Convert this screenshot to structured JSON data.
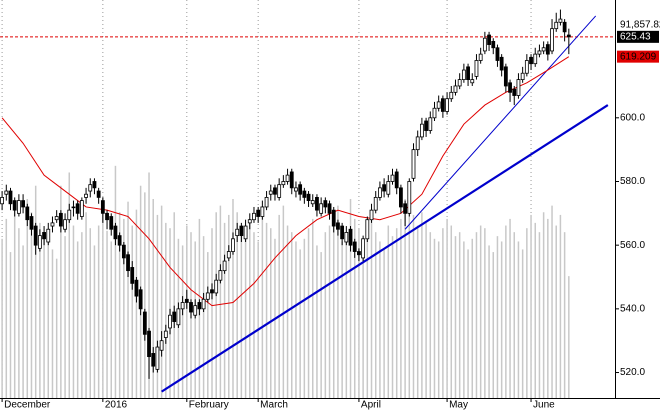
{
  "chart_data": {
    "type": "candlestick",
    "ohlc": [
      [
        573,
        577,
        571,
        575
      ],
      [
        576,
        579,
        574,
        577
      ],
      [
        577,
        578,
        571,
        573
      ],
      [
        574,
        575,
        569,
        571
      ],
      [
        570,
        576,
        569,
        574
      ],
      [
        574,
        576,
        570,
        572
      ],
      [
        572,
        573,
        566,
        568
      ],
      [
        569,
        570,
        563,
        565
      ],
      [
        566,
        567,
        557,
        560
      ],
      [
        559,
        565,
        558,
        563
      ],
      [
        564,
        566,
        560,
        562
      ],
      [
        561,
        567,
        560,
        565
      ],
      [
        566,
        569,
        564,
        567
      ],
      [
        568,
        571,
        567,
        569
      ],
      [
        570,
        571,
        564,
        566
      ],
      [
        565,
        570,
        564,
        568
      ],
      [
        568,
        573,
        567,
        571
      ],
      [
        572,
        574,
        569,
        572
      ],
      [
        573,
        574,
        568,
        570
      ],
      [
        569,
        575,
        568,
        574
      ],
      [
        575,
        578,
        573,
        576
      ],
      [
        577,
        581,
        575,
        579
      ],
      [
        580,
        581,
        576,
        578
      ],
      [
        577,
        578,
        573,
        575
      ],
      [
        574,
        575,
        567,
        570
      ],
      [
        570,
        571,
        565,
        568
      ],
      [
        569,
        570,
        563,
        565
      ],
      [
        566,
        567,
        560,
        562
      ],
      [
        563,
        564,
        558,
        560
      ],
      [
        560,
        561,
        554,
        556
      ],
      [
        557,
        558,
        550,
        552
      ],
      [
        553,
        555,
        546,
        548
      ],
      [
        549,
        550,
        542,
        544
      ],
      [
        546,
        547,
        538,
        540
      ],
      [
        539,
        540,
        530,
        532
      ],
      [
        533,
        534,
        518,
        525
      ],
      [
        526,
        528,
        520,
        522
      ],
      [
        521,
        530,
        520,
        528
      ],
      [
        527,
        533,
        525,
        530
      ],
      [
        531,
        535,
        529,
        533
      ],
      [
        534,
        540,
        532,
        538
      ],
      [
        539,
        541,
        534,
        536
      ],
      [
        535,
        542,
        534,
        540
      ],
      [
        540,
        544,
        538,
        542
      ],
      [
        543,
        546,
        540,
        542
      ],
      [
        542,
        543,
        537,
        539
      ],
      [
        538,
        543,
        537,
        541
      ],
      [
        542,
        543,
        538,
        540
      ],
      [
        540,
        545,
        539,
        543
      ],
      [
        543,
        547,
        542,
        545
      ],
      [
        546,
        548,
        543,
        545
      ],
      [
        545,
        551,
        544,
        549
      ],
      [
        549,
        554,
        548,
        552
      ],
      [
        552,
        557,
        551,
        555
      ],
      [
        556,
        560,
        555,
        558
      ],
      [
        558,
        564,
        557,
        562
      ],
      [
        563,
        567,
        561,
        565
      ],
      [
        566,
        567,
        561,
        563
      ],
      [
        562,
        568,
        561,
        566
      ],
      [
        567,
        570,
        565,
        568
      ],
      [
        568,
        572,
        567,
        570
      ],
      [
        571,
        572,
        567,
        569
      ],
      [
        569,
        574,
        568,
        572
      ],
      [
        572,
        577,
        571,
        575
      ],
      [
        576,
        579,
        574,
        577
      ],
      [
        578,
        579,
        574,
        576
      ],
      [
        575,
        581,
        574,
        579
      ],
      [
        579,
        582,
        578,
        580
      ],
      [
        580,
        584,
        579,
        582
      ],
      [
        583,
        584,
        576,
        578
      ],
      [
        577,
        580,
        575,
        578
      ],
      [
        579,
        580,
        574,
        576
      ],
      [
        577,
        578,
        573,
        575
      ],
      [
        576,
        577,
        572,
        574
      ],
      [
        573,
        576,
        572,
        574
      ],
      [
        575,
        576,
        569,
        571
      ],
      [
        570,
        575,
        569,
        573
      ],
      [
        574,
        575,
        570,
        572
      ],
      [
        573,
        574,
        568,
        570
      ],
      [
        571,
        572,
        564,
        566
      ],
      [
        567,
        568,
        563,
        565
      ],
      [
        566,
        567,
        560,
        562
      ],
      [
        561,
        566,
        560,
        564
      ],
      [
        565,
        566,
        558,
        560
      ],
      [
        561,
        562,
        556,
        558
      ],
      [
        558,
        559,
        555,
        557
      ],
      [
        556,
        563,
        555,
        562
      ],
      [
        562,
        569,
        561,
        568
      ],
      [
        568,
        573,
        567,
        571
      ],
      [
        571,
        577,
        570,
        575
      ],
      [
        575,
        580,
        574,
        578
      ],
      [
        579,
        581,
        575,
        577
      ],
      [
        576,
        582,
        575,
        580
      ],
      [
        580,
        584,
        579,
        582
      ],
      [
        583,
        584,
        576,
        578
      ],
      [
        578,
        579,
        570,
        572
      ],
      [
        573,
        574,
        566,
        570
      ],
      [
        570,
        581,
        569,
        580
      ],
      [
        581,
        592,
        580,
        590
      ],
      [
        590,
        596,
        588,
        594
      ],
      [
        594,
        600,
        593,
        598
      ],
      [
        599,
        600,
        594,
        596
      ],
      [
        596,
        602,
        595,
        600
      ],
      [
        600,
        605,
        599,
        603
      ],
      [
        603,
        607,
        602,
        605
      ],
      [
        606,
        607,
        600,
        602
      ],
      [
        602,
        608,
        601,
        606
      ],
      [
        606,
        610,
        605,
        608
      ],
      [
        608,
        612,
        607,
        610
      ],
      [
        610,
        614,
        609,
        612
      ],
      [
        612,
        617,
        611,
        615
      ],
      [
        616,
        617,
        610,
        612
      ],
      [
        611,
        614,
        610,
        612
      ],
      [
        613,
        620,
        612,
        618
      ],
      [
        618,
        622,
        617,
        620
      ],
      [
        621,
        627,
        620,
        625
      ],
      [
        626,
        627,
        621,
        623
      ],
      [
        624,
        625,
        620,
        622
      ],
      [
        622,
        623,
        616,
        618
      ],
      [
        619,
        620,
        613,
        615
      ],
      [
        616,
        617,
        608,
        610
      ],
      [
        611,
        612,
        605,
        608
      ],
      [
        609,
        610,
        604,
        607
      ],
      [
        607,
        614,
        606,
        612
      ],
      [
        612,
        616,
        611,
        614
      ],
      [
        614,
        620,
        613,
        618
      ],
      [
        619,
        620,
        615,
        617
      ],
      [
        617,
        622,
        616,
        620
      ],
      [
        620,
        623,
        619,
        621
      ],
      [
        621,
        624,
        620,
        622
      ],
      [
        623,
        624,
        618,
        620
      ],
      [
        621,
        631,
        620,
        628
      ],
      [
        628,
        633,
        627,
        630
      ],
      [
        630,
        634,
        629,
        631
      ],
      [
        630,
        631,
        624,
        627
      ],
      [
        626,
        628,
        620,
        625.43
      ]
    ],
    "volume": [
      120000,
      135000,
      110000,
      145000,
      128000,
      115000,
      150000,
      140000,
      160000,
      132000,
      125000,
      118000,
      112000,
      105000,
      160000,
      122000,
      170000,
      130000,
      118000,
      125000,
      140000,
      128000,
      115000,
      130000,
      152000,
      126000,
      118000,
      175000,
      140000,
      135000,
      148000,
      130000,
      142000,
      160000,
      155000,
      170000,
      150000,
      138000,
      145000,
      132000,
      128000,
      140000,
      120000,
      115000,
      130000,
      125000,
      118000,
      135000,
      122000,
      110000,
      128000,
      140000,
      145000,
      132000,
      138000,
      150000,
      140000,
      128000,
      120000,
      135000,
      125000,
      118000,
      140000,
      132000,
      128000,
      120000,
      138000,
      145000,
      130000,
      125000,
      118000,
      112000,
      120000,
      128000,
      135000,
      115000,
      110000,
      125000,
      130000,
      140000,
      145000,
      118000,
      122000,
      150000,
      135000,
      128000,
      120000,
      132000,
      140000,
      125000,
      118000,
      112000,
      130000,
      122000,
      128000,
      135000,
      150000,
      145000,
      138000,
      130000,
      140000,
      132000,
      125000,
      120000,
      118000,
      128000,
      135000,
      130000,
      122000,
      125000,
      118000,
      112000,
      120000,
      125000,
      130000,
      128000,
      115000,
      110000,
      122000,
      118000,
      130000,
      135000,
      125000,
      118000,
      112000,
      128000,
      138000,
      132000,
      125000,
      140000,
      135000,
      145000,
      130000,
      138000,
      125000,
      91857.82
    ],
    "volume_last_label": "91,857.82",
    "volume_lim": [
      0,
      300000
    ],
    "volume_color": "#c8c8c8",
    "ma": {
      "color": "#e00000",
      "x": [
        0,
        5,
        10,
        15,
        20,
        25,
        30,
        35,
        40,
        45,
        50,
        55,
        60,
        65,
        70,
        75,
        80,
        85,
        90,
        95,
        100,
        105,
        110,
        115,
        120,
        125,
        130,
        135
      ],
      "values": [
        600,
        592,
        582,
        577,
        572,
        571,
        569,
        562,
        553,
        546,
        541,
        542,
        548,
        556,
        563,
        568,
        571,
        569,
        568,
        570,
        576,
        588,
        598,
        604,
        608,
        611,
        615,
        619.209
      ]
    },
    "trendlines": [
      {
        "x": [
          38,
          144.3
        ],
        "values": [
          514,
          604
        ],
        "color": "#0000cc",
        "width": 2.2
      },
      {
        "x": [
          96,
          141.4
        ],
        "values": [
          565,
          632
        ],
        "color": "#0000cc",
        "width": 1
      }
    ],
    "close_line_color": "#e00000",
    "xlim": [
      -0.5,
      146
    ],
    "ylim": [
      512,
      637
    ],
    "yticks": [
      {
        "value": 520,
        "label": "520.0"
      },
      {
        "value": 540,
        "label": "540.0"
      },
      {
        "value": 560,
        "label": "560.0"
      },
      {
        "value": 580,
        "label": "580.0"
      },
      {
        "value": 600,
        "label": "600.0"
      }
    ],
    "xticks": [
      {
        "value": 0,
        "label": "December"
      },
      {
        "value": 24,
        "label": "2016"
      },
      {
        "value": 44,
        "label": "February"
      },
      {
        "value": 61,
        "label": "March"
      },
      {
        "value": 85,
        "label": "April"
      },
      {
        "value": 106,
        "label": "May"
      },
      {
        "value": 126,
        "label": "June"
      }
    ]
  }
}
